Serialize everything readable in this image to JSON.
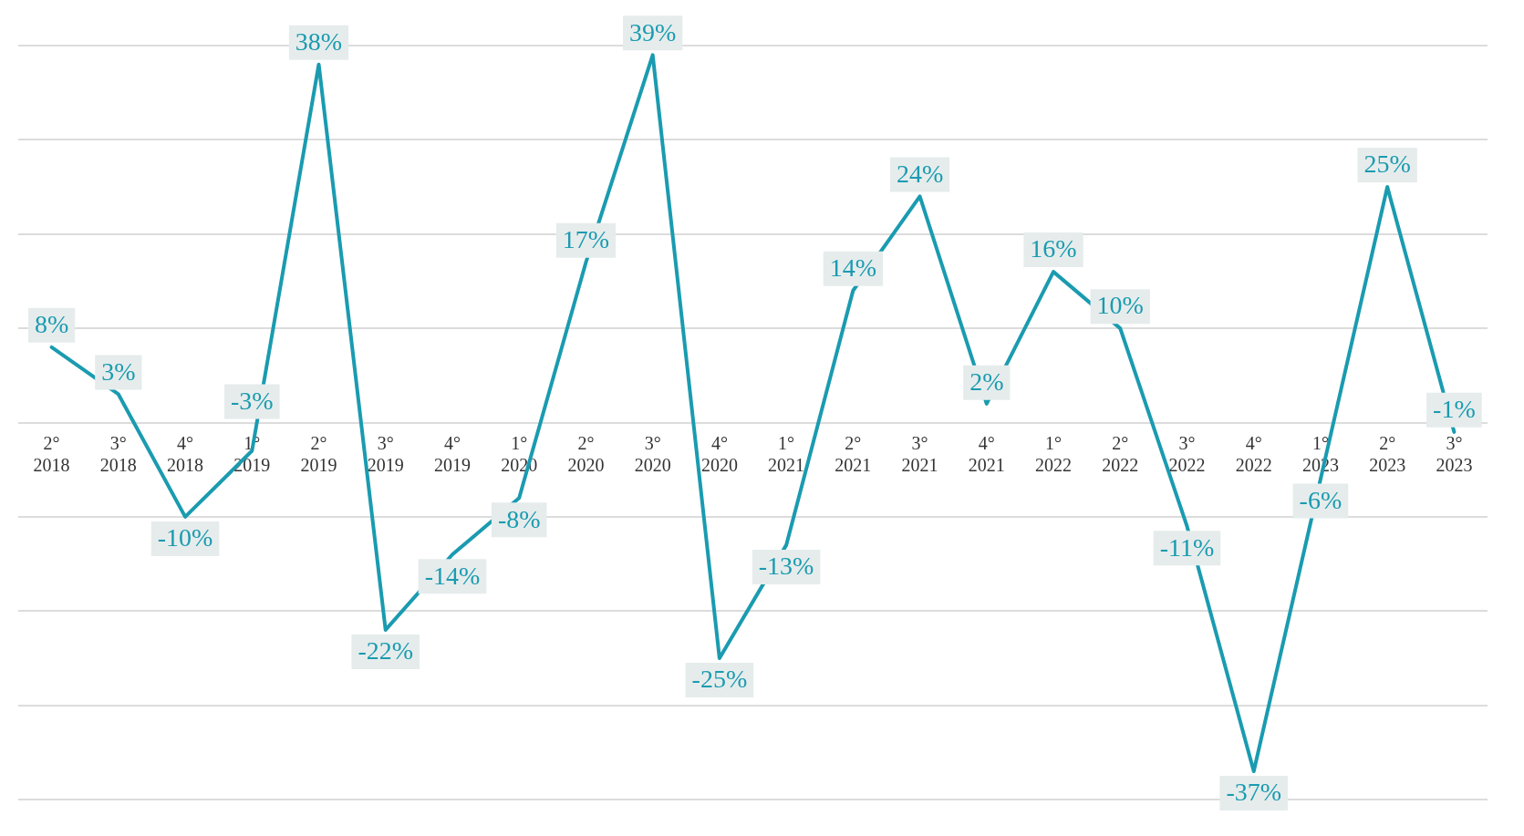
{
  "chart_data": {
    "type": "line",
    "categories": [
      "2°\n2018",
      "3°\n2018",
      "4°\n2018",
      "1°\n2019",
      "2°\n2019",
      "3°\n2019",
      "4°\n2019",
      "1°\n2020",
      "2°\n2020",
      "3°\n2020",
      "4°\n2020",
      "1°\n2021",
      "2°\n2021",
      "3°\n2021",
      "4°\n2021",
      "1°\n2022",
      "2°\n2022",
      "3°\n2022",
      "4°\n2022",
      "1°\n2023",
      "2°\n2023",
      "3°\n2023"
    ],
    "series": [
      {
        "color": "#1a9bb0",
        "values": [
          8,
          3,
          -10,
          -3,
          38,
          -22,
          -14,
          -8,
          17,
          39,
          -25,
          -13,
          14,
          24,
          2,
          16,
          10,
          -11,
          -37,
          -6,
          25,
          -1
        ]
      }
    ],
    "value_labels": [
      "8%",
      "3%",
      "-10%",
      "-3%",
      "38%",
      "-22%",
      "-14%",
      "-8%",
      "17%",
      "39%",
      "-25%",
      "-13%",
      "14%",
      "24%",
      "2%",
      "16%",
      "10%",
      "-11%",
      "-37%",
      "-6%",
      "25%",
      "-1%"
    ],
    "data_labels": true,
    "grid": "y",
    "tick_labels": "x",
    "legend": false,
    "marker": "none",
    "line_style": "solid"
  }
}
